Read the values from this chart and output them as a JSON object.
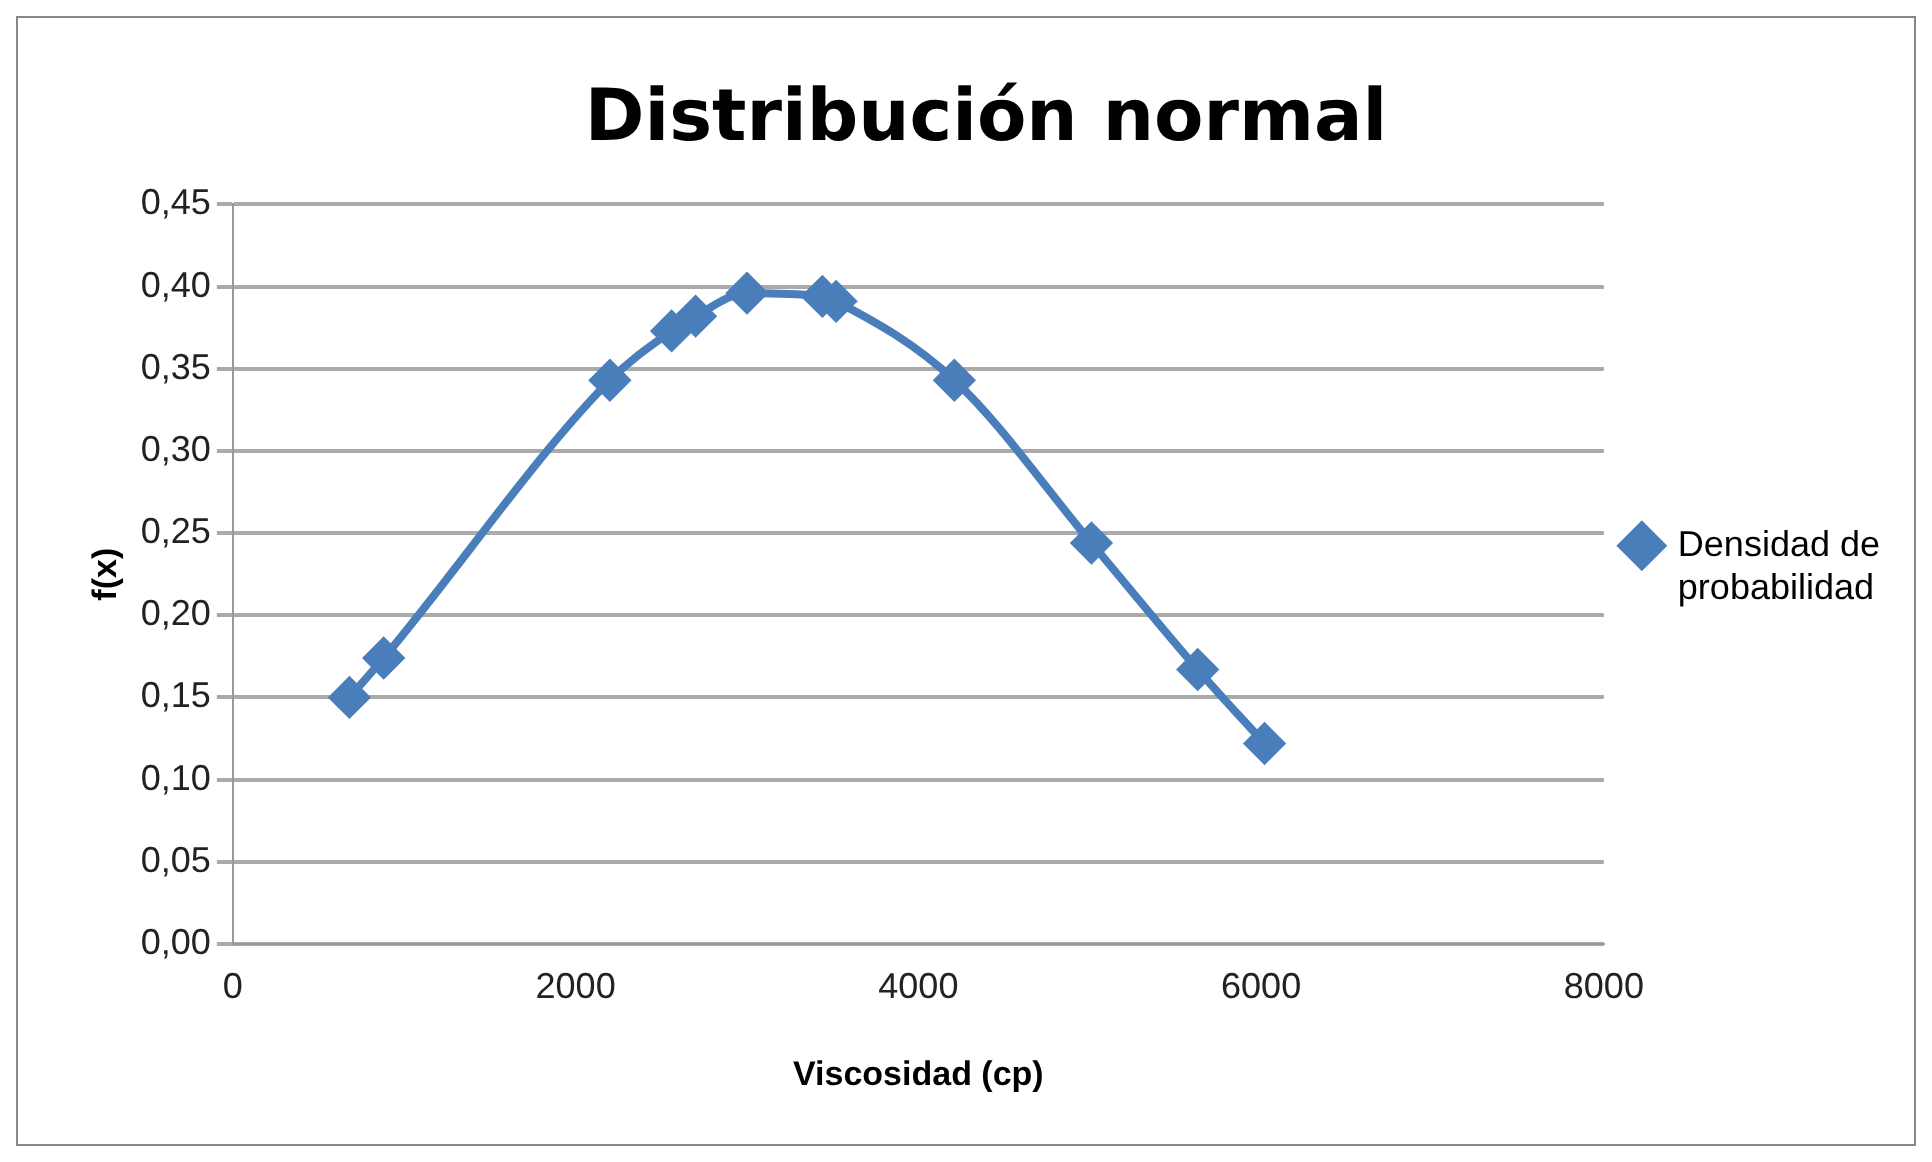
{
  "chart_data": {
    "type": "line",
    "title": "Distribución normal",
    "xlabel": "Viscosidad (cp)",
    "ylabel": "f(x)",
    "x": [
      680,
      880,
      2200,
      2560,
      2700,
      3000,
      3440,
      3520,
      4210,
      5010,
      5630,
      6020
    ],
    "series": [
      {
        "name": "Densidad de probabilidad",
        "color": "#4a7ebb",
        "values": [
          0.15,
          0.174,
          0.343,
          0.373,
          0.382,
          0.396,
          0.394,
          0.391,
          0.343,
          0.244,
          0.167,
          0.122
        ]
      }
    ],
    "xlim": [
      0,
      8000
    ],
    "xticks": [
      0,
      2000,
      4000,
      6000,
      8000
    ],
    "ylim": [
      0,
      0.45
    ],
    "yticks": [
      {
        "value": 0,
        "label": "0,00"
      },
      {
        "value": 0.05,
        "label": "0,05"
      },
      {
        "value": 0.1,
        "label": "0,10"
      },
      {
        "value": 0.15,
        "label": "0,15"
      },
      {
        "value": 0.2,
        "label": "0,20"
      },
      {
        "value": 0.25,
        "label": "0,25"
      },
      {
        "value": 0.3,
        "label": "0,30"
      },
      {
        "value": 0.35,
        "label": "0,35"
      },
      {
        "value": 0.4,
        "label": "0,40"
      },
      {
        "value": 0.45,
        "label": "0,45"
      }
    ],
    "grid": "y",
    "legend": "right",
    "marker": "diamond",
    "line_style": "solid"
  }
}
